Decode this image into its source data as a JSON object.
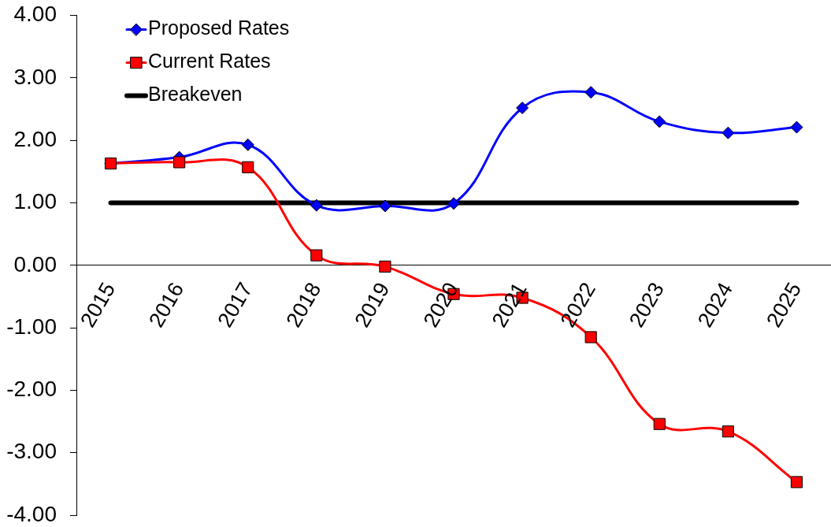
{
  "chart_data": {
    "type": "line",
    "categories": [
      "2015",
      "2016",
      "2017",
      "2018",
      "2019",
      "2020",
      "2021",
      "2022",
      "2023",
      "2024",
      "2025"
    ],
    "series": [
      {
        "name": "Proposed Rates",
        "color": "#0000ff",
        "marker": "diamond",
        "values": [
          1.63,
          1.73,
          1.93,
          0.96,
          0.95,
          0.99,
          2.52,
          2.77,
          2.3,
          2.12,
          2.21
        ]
      },
      {
        "name": "Current Rates",
        "color": "#ff0000",
        "marker": "square",
        "values": [
          1.63,
          1.65,
          1.57,
          0.16,
          -0.02,
          -0.46,
          -0.52,
          -1.15,
          -2.54,
          -2.66,
          -3.47
        ]
      },
      {
        "name": "Breakeven",
        "color": "#000000",
        "marker": "none",
        "values": [
          1,
          1,
          1,
          1,
          1,
          1,
          1,
          1,
          1,
          1,
          1
        ]
      }
    ],
    "ylim": [
      -4,
      4
    ],
    "yticks": [
      {
        "value": -4,
        "label": "-4.00"
      },
      {
        "value": -3,
        "label": "-3.00"
      },
      {
        "value": -2,
        "label": "-2.00"
      },
      {
        "value": -1,
        "label": "-1.00"
      },
      {
        "value": 0,
        "label": "0.00"
      },
      {
        "value": 1,
        "label": "1.00"
      },
      {
        "value": 2,
        "label": "2.00"
      },
      {
        "value": 3,
        "label": "3.00"
      },
      {
        "value": 4,
        "label": "4.00"
      }
    ],
    "legend": "top left",
    "line_style": "solid"
  }
}
